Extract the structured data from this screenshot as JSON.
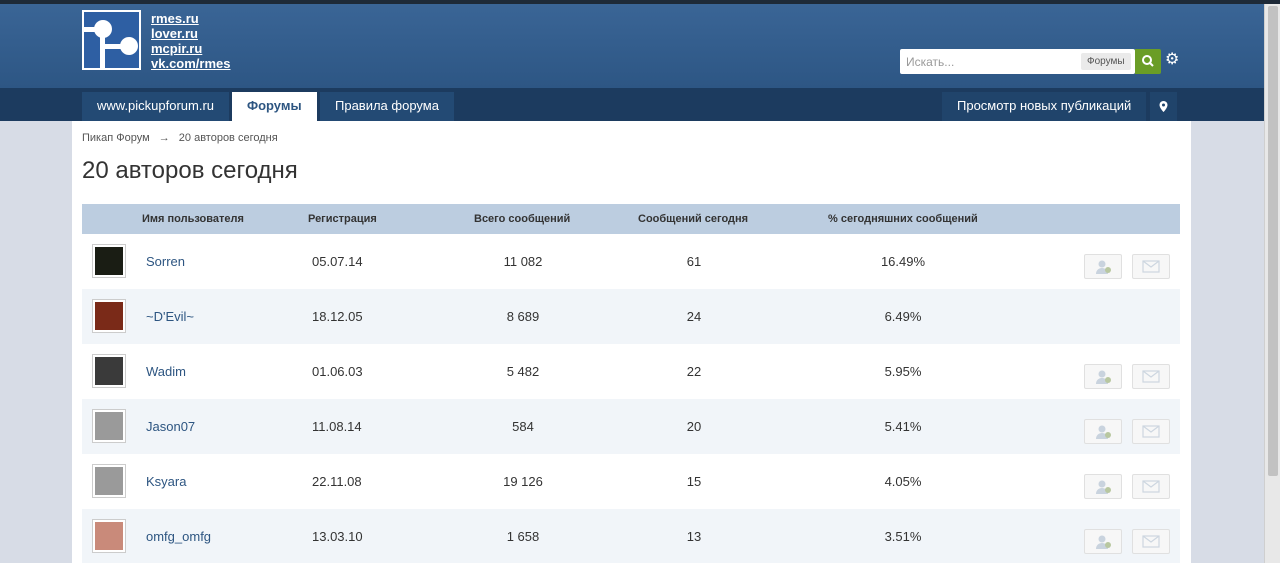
{
  "header": {
    "links": [
      "rmes.ru",
      "lover.ru",
      "mcpir.ru",
      "vk.com/rmes"
    ]
  },
  "search": {
    "placeholder": "Искать...",
    "scope_label": "Форумы",
    "button_icon": "search-icon",
    "settings_icon": "gear-icon"
  },
  "nav": {
    "items": [
      "www.pickupforum.ru",
      "Форумы",
      "Правила форума"
    ],
    "active_index": 1,
    "new_posts": "Просмотр новых публикаций",
    "pin_icon": "map-pin-icon"
  },
  "breadcrumb": {
    "home": "Пикап Форум",
    "separator": "→",
    "current": "20 авторов сегодня"
  },
  "page": {
    "title": "20 авторов сегодня"
  },
  "table": {
    "columns": [
      "Имя пользователя",
      "Регистрация",
      "Всего сообщений",
      "Сообщений сегодня",
      "% сегодняшних сообщений"
    ],
    "rows": [
      {
        "name": "Sorren",
        "registered": "05.07.14",
        "total": "11 082",
        "today": "61",
        "percent": "16.49%",
        "actions": true
      },
      {
        "name": "~D'Evil~",
        "registered": "18.12.05",
        "total": "8 689",
        "today": "24",
        "percent": "6.49%",
        "actions": false
      },
      {
        "name": "Wadim",
        "registered": "01.06.03",
        "total": "5 482",
        "today": "22",
        "percent": "5.95%",
        "actions": true
      },
      {
        "name": "Jason07",
        "registered": "11.08.14",
        "total": "584",
        "today": "20",
        "percent": "5.41%",
        "actions": true
      },
      {
        "name": "Ksyara",
        "registered": "22.11.08",
        "total": "19 126",
        "today": "15",
        "percent": "4.05%",
        "actions": true
      },
      {
        "name": "omfg_omfg",
        "registered": "13.03.10",
        "total": "1 658",
        "today": "13",
        "percent": "3.51%",
        "actions": true
      }
    ]
  },
  "colors": {
    "header_bg": "#3a6596",
    "nav_bg": "#1c3b5f",
    "accent": "#2d5581",
    "search_button": "#6a9d26",
    "table_header": "#bccde0"
  }
}
